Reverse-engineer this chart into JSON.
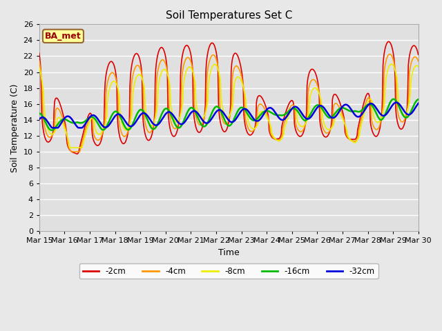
{
  "title": "Soil Temperatures Set C",
  "xlabel": "Time",
  "ylabel": "Soil Temperature (C)",
  "annotation": "BA_met",
  "ylim": [
    0,
    26
  ],
  "yticks": [
    0,
    2,
    4,
    6,
    8,
    10,
    12,
    14,
    16,
    18,
    20,
    22,
    24,
    26
  ],
  "xtick_labels": [
    "Mar 15",
    "Mar 16",
    "Mar 17",
    "Mar 18",
    "Mar 19",
    "Mar 20",
    "Mar 21",
    "Mar 22",
    "Mar 23",
    "Mar 24",
    "Mar 25",
    "Mar 26",
    "Mar 27",
    "Mar 28",
    "Mar 29",
    "Mar 30"
  ],
  "colors": {
    "-2cm": "#dd0000",
    "-4cm": "#ff9900",
    "-8cm": "#eeee00",
    "-16cm": "#00bb00",
    "-32cm": "#0000dd"
  },
  "line_widths": {
    "-2cm": 1.2,
    "-4cm": 1.2,
    "-8cm": 1.2,
    "-16cm": 1.8,
    "-32cm": 1.8
  },
  "legend_labels": [
    "-2cm",
    "-4cm",
    "-8cm",
    "-16cm",
    "-32cm"
  ],
  "n_days": 15,
  "fig_bg_color": "#e8e8e8",
  "plot_bg_color": "#e0e0e0"
}
